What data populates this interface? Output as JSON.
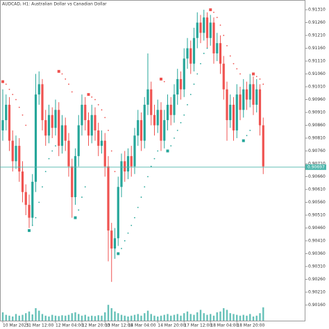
{
  "chart_data": {
    "type": "candlestick",
    "title": "AUDCAD, H1:  Australian Dollar vs Canadian Dollar",
    "categories": [
      "10 Mar 2025",
      null,
      null,
      null,
      null,
      null,
      null,
      "11 Mar 12:00",
      null,
      null,
      null,
      null,
      null,
      null,
      null,
      null,
      "12 Mar 04:00",
      null,
      null,
      null,
      null,
      null,
      null,
      null,
      "12 Mar 20:00",
      null,
      null,
      null,
      null,
      null,
      null,
      "13 Mar 12:00",
      null,
      null,
      null,
      null,
      null,
      null,
      "14 Mar 04:00",
      null,
      null,
      null,
      null,
      null,
      null,
      null,
      null,
      "14 Mar 20:00",
      null,
      null,
      null,
      null,
      null,
      null,
      null,
      "17 Mar 12:00",
      null,
      null,
      null,
      null,
      null,
      null,
      null,
      "18 Mar 04:00",
      null,
      null,
      null,
      null,
      null,
      null,
      null,
      "18 Mar 20:00",
      null,
      null,
      null,
      null,
      null,
      null,
      null,
      null
    ],
    "open": [
      0.9084,
      0.9088,
      0.9094,
      0.908,
      0.9072,
      0.9078,
      0.9068,
      0.906,
      0.9055,
      0.905,
      0.9064,
      0.9098,
      0.9102,
      0.9088,
      0.9082,
      0.909,
      0.9085,
      0.9092,
      0.9078,
      0.9086,
      0.908,
      0.907,
      0.9058,
      0.9074,
      0.9086,
      0.9094,
      0.9088,
      0.9082,
      0.909,
      0.9084,
      0.9078,
      0.908,
      0.907,
      0.9045,
      0.9038,
      0.9042,
      0.9062,
      0.9072,
      0.9068,
      0.9074,
      0.907,
      0.9082,
      0.9088,
      0.908,
      0.9094,
      0.91,
      0.909,
      0.9086,
      0.9092,
      0.908,
      0.9088,
      0.9094,
      0.909,
      0.9098,
      0.9104,
      0.91,
      0.9112,
      0.9116,
      0.911,
      0.912,
      0.9126,
      0.9122,
      0.9128,
      0.912,
      0.9126,
      0.9114,
      0.9118,
      0.911,
      0.91,
      0.9088,
      0.9094,
      0.9084,
      0.9098,
      0.9092,
      0.91,
      0.9096,
      0.9102,
      0.9094,
      0.91,
      0.9086
    ],
    "high": [
      0.91,
      0.9098,
      0.9097,
      0.9084,
      0.9082,
      0.9081,
      0.9072,
      0.9063,
      0.9059,
      0.9067,
      0.9106,
      0.9107,
      0.9104,
      0.9092,
      0.9094,
      0.9093,
      0.9096,
      0.9095,
      0.909,
      0.9089,
      0.9083,
      0.9073,
      0.9077,
      0.909,
      0.9098,
      0.9097,
      0.9091,
      0.9094,
      0.9093,
      0.9087,
      0.9084,
      0.9083,
      0.9074,
      0.9048,
      0.9046,
      0.9066,
      0.9075,
      0.9076,
      0.9077,
      0.9078,
      0.9085,
      0.9092,
      0.9091,
      0.9097,
      0.9114,
      0.9103,
      0.9094,
      0.9096,
      0.9095,
      0.9092,
      0.9098,
      0.9097,
      0.9102,
      0.9108,
      0.9107,
      0.9116,
      0.912,
      0.9119,
      0.9124,
      0.913,
      0.9129,
      0.9131,
      0.913,
      0.9129,
      0.9128,
      0.9122,
      0.9121,
      0.9113,
      0.9103,
      0.9098,
      0.9097,
      0.9102,
      0.9101,
      0.9104,
      0.9103,
      0.9106,
      0.9105,
      0.9104,
      0.9102,
      0.9089
    ],
    "low": [
      0.908,
      0.9084,
      0.9076,
      0.9068,
      0.9069,
      0.9064,
      0.9056,
      0.9051,
      0.9046,
      0.9047,
      0.906,
      0.9094,
      0.9084,
      0.9078,
      0.9079,
      0.9081,
      0.9082,
      0.9074,
      0.9075,
      0.9076,
      0.9066,
      0.905,
      0.9055,
      0.907,
      0.9082,
      0.9084,
      0.9078,
      0.9079,
      0.908,
      0.9074,
      0.9075,
      0.9066,
      0.9033,
      0.9025,
      0.9034,
      0.9039,
      0.9058,
      0.9064,
      0.9065,
      0.9066,
      0.9067,
      0.9078,
      0.9076,
      0.9077,
      0.909,
      0.9086,
      0.9082,
      0.9083,
      0.9076,
      0.9077,
      0.9084,
      0.9086,
      0.9087,
      0.9094,
      0.9096,
      0.9097,
      0.9108,
      0.9106,
      0.9107,
      0.9116,
      0.9118,
      0.9119,
      0.9116,
      0.9117,
      0.911,
      0.9111,
      0.9106,
      0.9096,
      0.908,
      0.9085,
      0.908,
      0.9081,
      0.9088,
      0.9089,
      0.9092,
      0.9093,
      0.909,
      0.9091,
      0.9082,
      0.9067
    ],
    "close": [
      0.9088,
      0.9094,
      0.908,
      0.9072,
      0.9078,
      0.9068,
      0.906,
      0.9055,
      0.905,
      0.9064,
      0.9098,
      0.9102,
      0.9088,
      0.9082,
      0.909,
      0.9085,
      0.9092,
      0.9078,
      0.9086,
      0.908,
      0.907,
      0.9058,
      0.9074,
      0.9086,
      0.9094,
      0.9088,
      0.9082,
      0.909,
      0.9084,
      0.9078,
      0.908,
      0.907,
      0.9045,
      0.9038,
      0.9042,
      0.9062,
      0.9072,
      0.9068,
      0.9074,
      0.907,
      0.9082,
      0.9088,
      0.908,
      0.9094,
      0.91,
      0.909,
      0.9086,
      0.9092,
      0.908,
      0.9088,
      0.9094,
      0.909,
      0.9098,
      0.9104,
      0.91,
      0.9112,
      0.9116,
      0.911,
      0.912,
      0.9126,
      0.9122,
      0.9128,
      0.912,
      0.9126,
      0.9114,
      0.9118,
      0.911,
      0.91,
      0.9088,
      0.9094,
      0.9084,
      0.9098,
      0.9092,
      0.91,
      0.9096,
      0.9102,
      0.9094,
      0.91,
      0.9086,
      0.907
    ],
    "sar": [
      0.9103,
      0.9102,
      0.91,
      0.9098,
      0.9096,
      0.9093,
      0.909,
      0.9086,
      0.9045,
      0.9047,
      0.905,
      0.9056,
      0.9062,
      0.9068,
      0.9073,
      0.9076,
      0.9078,
      0.9107,
      0.9106,
      0.9104,
      0.9102,
      0.9099,
      0.905,
      0.9053,
      0.9058,
      0.9062,
      0.9098,
      0.9097,
      0.9096,
      0.9094,
      0.9092,
      0.9089,
      0.9084,
      0.9076,
      0.9068,
      0.9036,
      0.9038,
      0.9041,
      0.9044,
      0.9047,
      0.905,
      0.9054,
      0.9058,
      0.9062,
      0.9066,
      0.907,
      0.9073,
      0.9076,
      0.9104,
      0.9103,
      0.9076,
      0.9078,
      0.9081,
      0.9084,
      0.9087,
      0.909,
      0.9094,
      0.9098,
      0.9102,
      0.9106,
      0.911,
      0.9114,
      0.9116,
      0.9131,
      0.913,
      0.9128,
      0.9125,
      0.9121,
      0.9117,
      0.9113,
      0.911,
      0.9108,
      0.9106,
      0.908,
      0.9082,
      0.9084,
      0.9106,
      0.9105,
      0.9104,
      0.9102
    ],
    "volume": [
      20,
      14,
      12,
      10,
      16,
      12,
      14,
      18,
      22,
      15,
      30,
      24,
      16,
      12,
      10,
      14,
      12,
      11,
      13,
      12,
      14,
      18,
      20,
      16,
      12,
      14,
      10,
      12,
      11,
      13,
      12,
      20,
      38,
      30,
      22,
      18,
      14,
      12,
      10,
      12,
      14,
      16,
      12,
      18,
      24,
      16,
      12,
      10,
      12,
      14,
      16,
      12,
      14,
      16,
      12,
      18,
      22,
      16,
      14,
      20,
      26,
      18,
      14,
      16,
      12,
      20,
      22,
      30,
      26,
      18,
      16,
      14,
      12,
      14,
      12,
      16,
      10,
      12,
      18,
      32
    ],
    "up_color": "#26a69a",
    "down_color": "#ef5350",
    "volume_color": "#26a69a",
    "price_line_color": "#4db6ac",
    "current_price": {
      "value": 0.90697,
      "label": "0.90697"
    },
    "ylim": [
      0.90099,
      0.91348
    ],
    "yticks": [
      {
        "value": 0.9131,
        "label": "0.91310"
      },
      {
        "value": 0.9126,
        "label": "0.91260"
      },
      {
        "value": 0.9121,
        "label": "0.91210"
      },
      {
        "value": 0.9116,
        "label": "0.91160"
      },
      {
        "value": 0.9111,
        "label": "0.91110"
      },
      {
        "value": 0.9106,
        "label": "0.91060"
      },
      {
        "value": 0.9101,
        "label": "0.91010"
      },
      {
        "value": 0.9096,
        "label": "0.90960"
      },
      {
        "value": 0.9091,
        "label": "0.90910"
      },
      {
        "value": 0.9086,
        "label": "0.90860"
      },
      {
        "value": 0.9081,
        "label": "0.90810"
      },
      {
        "value": 0.9076,
        "label": "0.90760"
      },
      {
        "value": 0.9071,
        "label": "0.90710"
      },
      {
        "value": 0.9066,
        "label": "0.90660"
      },
      {
        "value": 0.9061,
        "label": "0.90610"
      },
      {
        "value": 0.9056,
        "label": "0.90560"
      },
      {
        "value": 0.9051,
        "label": "0.90510"
      },
      {
        "value": 0.9046,
        "label": "0.90460"
      },
      {
        "value": 0.9041,
        "label": "0.90410"
      },
      {
        "value": 0.9036,
        "label": "0.90360"
      },
      {
        "value": 0.9031,
        "label": "0.90310"
      },
      {
        "value": 0.9026,
        "label": "0.90260"
      },
      {
        "value": 0.9021,
        "label": "0.90210"
      },
      {
        "value": 0.9016,
        "label": "0.90160"
      }
    ],
    "grid": false
  }
}
